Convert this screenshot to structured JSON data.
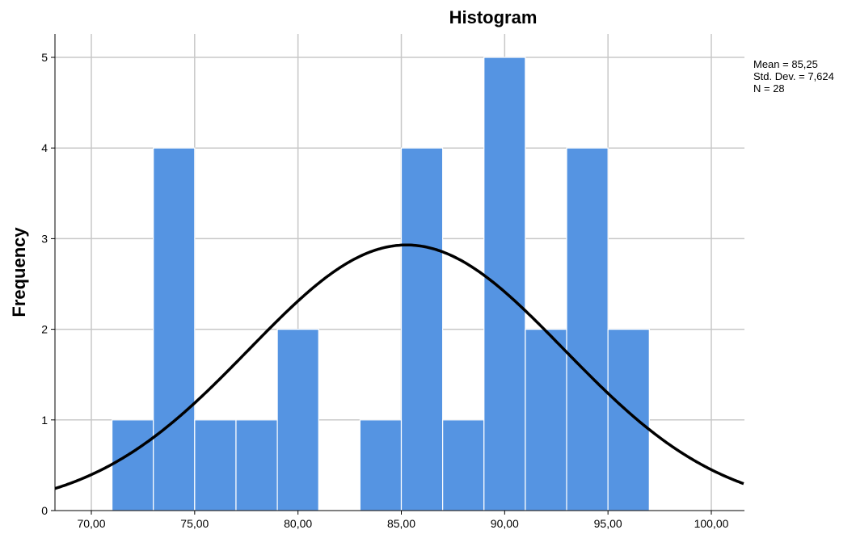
{
  "chart_data": {
    "type": "bar",
    "title": "Histogram",
    "xlabel": "",
    "ylabel": "Frequency",
    "xlim": [
      68.0,
      101.5
    ],
    "ylim": [
      0,
      5.25
    ],
    "x_ticks": [
      70,
      75,
      80,
      85,
      90,
      95,
      100
    ],
    "x_tick_labels": [
      "70,00",
      "75,00",
      "80,00",
      "85,00",
      "90,00",
      "95,00",
      "100,00"
    ],
    "y_ticks": [
      0,
      1,
      2,
      3,
      4,
      5
    ],
    "y_tick_labels": [
      "0",
      "1",
      "2",
      "3",
      "4",
      "5"
    ],
    "grid": true,
    "bar_color": "#5594E2",
    "curve_color": "#000000",
    "bins": [
      {
        "from": 71,
        "to": 73,
        "count": 1
      },
      {
        "from": 73,
        "to": 75,
        "count": 4
      },
      {
        "from": 75,
        "to": 77,
        "count": 1
      },
      {
        "from": 77,
        "to": 79,
        "count": 1
      },
      {
        "from": 79,
        "to": 81,
        "count": 2
      },
      {
        "from": 81,
        "to": 83,
        "count": 0
      },
      {
        "from": 83,
        "to": 85,
        "count": 1
      },
      {
        "from": 85,
        "to": 87,
        "count": 4
      },
      {
        "from": 87,
        "to": 89,
        "count": 1
      },
      {
        "from": 89,
        "to": 91,
        "count": 5
      },
      {
        "from": 91,
        "to": 93,
        "count": 2
      },
      {
        "from": 93,
        "to": 95,
        "count": 4
      },
      {
        "from": 95,
        "to": 97,
        "count": 2
      }
    ],
    "normal_curve": {
      "mean": 85.25,
      "std_dev": 7.624,
      "n": 28,
      "bin_width": 2
    },
    "stats_legend_position": "top-right",
    "stats": [
      "Mean = 85,25",
      "Std. Dev. = 7,624",
      "N = 28"
    ]
  }
}
